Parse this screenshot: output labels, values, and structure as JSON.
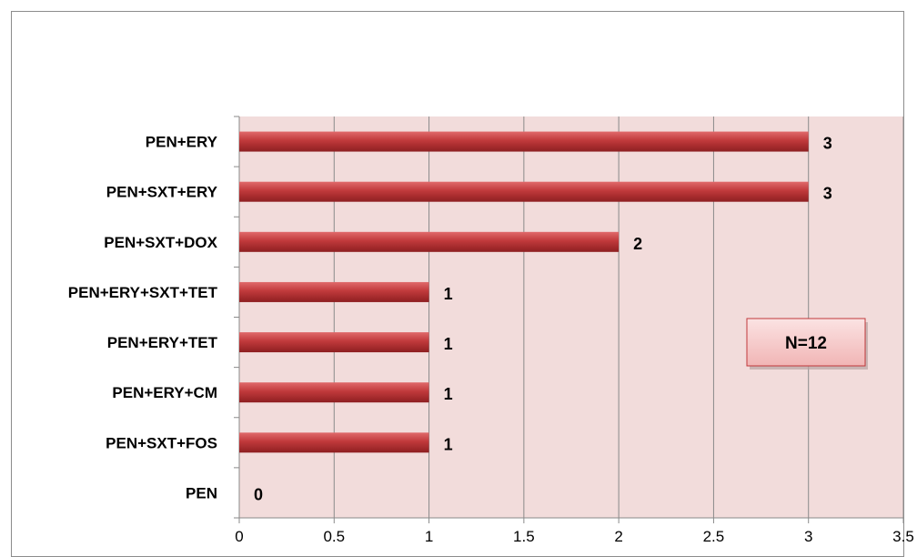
{
  "chart_data": {
    "type": "bar",
    "orientation": "horizontal",
    "categories": [
      "PEN+ERY",
      "PEN+SXT+ERY",
      "PEN+SXT+DOX",
      "PEN+ERY+SXT+TET",
      "PEN+ERY+TET",
      "PEN+ERY+CM",
      "PEN+SXT+FOS",
      "PEN"
    ],
    "values": [
      3,
      3,
      2,
      1,
      1,
      1,
      1,
      0
    ],
    "value_labels": [
      "3",
      "3",
      "2",
      "1",
      "1",
      "1",
      "1",
      "0"
    ],
    "xlim": [
      0,
      3.5
    ],
    "xticks": [
      0,
      0.5,
      1,
      1.5,
      2,
      2.5,
      3,
      3.5
    ],
    "xtick_labels": [
      "0",
      "0.5",
      "1",
      "1.5",
      "2",
      "2.5",
      "3",
      "3.5"
    ],
    "grid": "vertical",
    "bar_color": "#c0393b",
    "plot_background": "#f2dcdb",
    "annotation": "N=12"
  }
}
